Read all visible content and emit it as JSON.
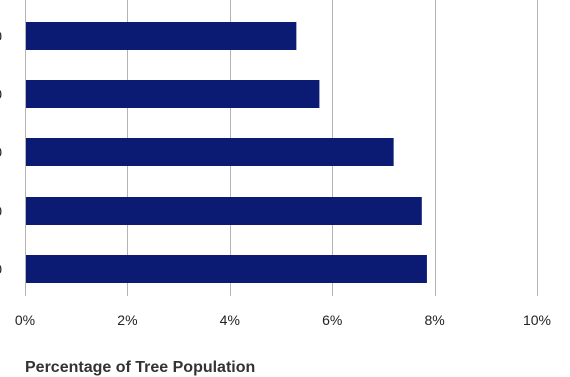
{
  "chart_data": {
    "type": "bar",
    "orientation": "horizontal",
    "categories": [
      "0",
      "0",
      "0",
      "0",
      "0"
    ],
    "values": [
      5.3,
      5.75,
      7.2,
      7.75,
      7.85
    ],
    "xlabel": "Percentage of Tree Population",
    "ylabel": "",
    "xlim": [
      0,
      10
    ],
    "xticks": [
      "0%",
      "2%",
      "4%",
      "6%",
      "8%",
      "10%"
    ],
    "grid": "vertical",
    "colors": {
      "bar": "#0b1a73",
      "grid": "#b3b3b3",
      "text": "#222222"
    }
  }
}
